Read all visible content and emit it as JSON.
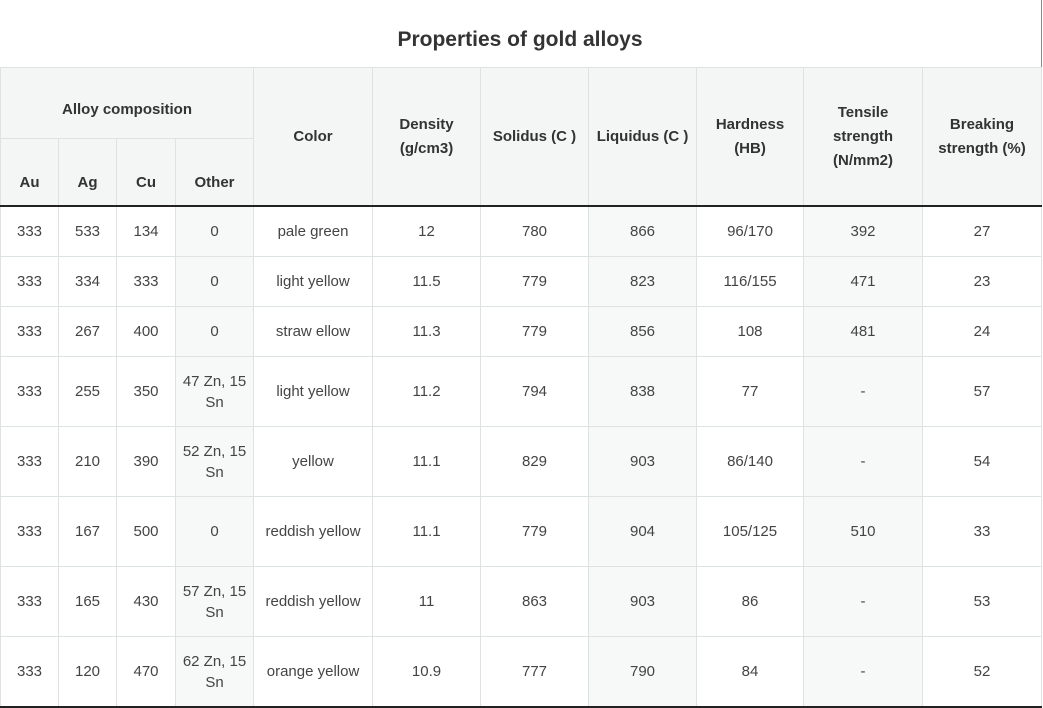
{
  "title": "Properties of gold alloys",
  "headers": {
    "group": "Alloy composition",
    "au": "Au",
    "ag": "Ag",
    "cu": "Cu",
    "other": "Other",
    "color": "Color",
    "density": "Density (g/cm3)",
    "solidus": "Solidus (C )",
    "liquidus": "Liquidus (C )",
    "hardness": "Hardness (HB)",
    "tensile": "Tensile strength (N/mm2)",
    "breaking": "Breaking strength (%)"
  },
  "rows": [
    {
      "au": "333",
      "ag": "533",
      "cu": "134",
      "other": "0",
      "color": "pale green",
      "density": "12",
      "solidus": "780",
      "liquidus": "866",
      "hardness": "96/170",
      "tensile": "392",
      "breaking": "27"
    },
    {
      "au": "333",
      "ag": "334",
      "cu": "333",
      "other": "0",
      "color": "light yellow",
      "density": "11.5",
      "solidus": "779",
      "liquidus": "823",
      "hardness": "116/155",
      "tensile": "471",
      "breaking": "23"
    },
    {
      "au": "333",
      "ag": "267",
      "cu": "400",
      "other": "0",
      "color": "straw ellow",
      "density": "11.3",
      "solidus": "779",
      "liquidus": "856",
      "hardness": "108",
      "tensile": "481",
      "breaking": "24"
    },
    {
      "au": "333",
      "ag": "255",
      "cu": "350",
      "other": "47 Zn, 15 Sn",
      "color": "light yellow",
      "density": "11.2",
      "solidus": "794",
      "liquidus": "838",
      "hardness": "77",
      "tensile": "-",
      "breaking": "57"
    },
    {
      "au": "333",
      "ag": "210",
      "cu": "390",
      "other": "52 Zn, 15 Sn",
      "color": "yellow",
      "density": "11.1",
      "solidus": "829",
      "liquidus": "903",
      "hardness": "86/140",
      "tensile": "-",
      "breaking": "54"
    },
    {
      "au": "333",
      "ag": "167",
      "cu": "500",
      "other": "0",
      "color": "reddish yellow",
      "density": "11.1",
      "solidus": "779",
      "liquidus": "904",
      "hardness": "105/125",
      "tensile": "510",
      "breaking": "33"
    },
    {
      "au": "333",
      "ag": "165",
      "cu": "430",
      "other": "57 Zn, 15 Sn",
      "color": "reddish yellow",
      "density": "11",
      "solidus": "863",
      "liquidus": "903",
      "hardness": "86",
      "tensile": "-",
      "breaking": "53"
    },
    {
      "au": "333",
      "ag": "120",
      "cu": "470",
      "other": "62 Zn, 15 Sn",
      "color": "orange yellow",
      "density": "10.9",
      "solidus": "777",
      "liquidus": "790",
      "hardness": "84",
      "tensile": "-",
      "breaking": "52"
    }
  ]
}
